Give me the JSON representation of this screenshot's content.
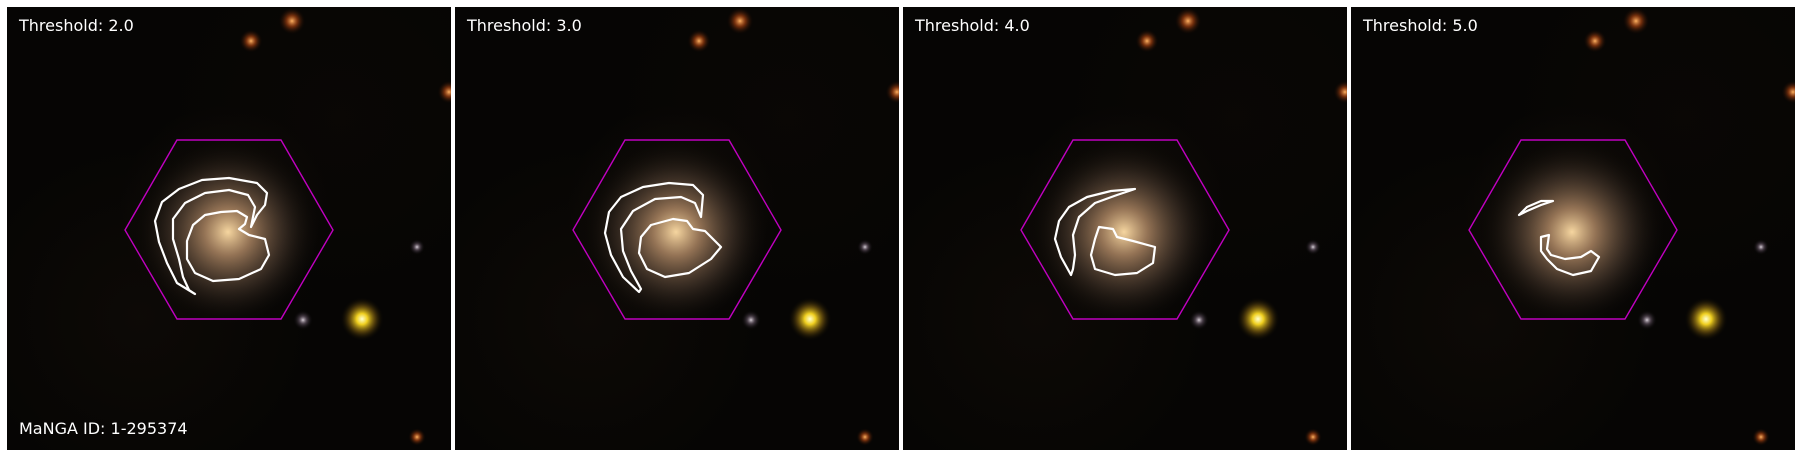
{
  "figure": {
    "manga_id_label": "MaNGA ID: 1-295374",
    "hexagon_color": "#c000c0",
    "contour_color": "#ffffff",
    "panels": [
      {
        "threshold_label": "Threshold: 2.0"
      },
      {
        "threshold_label": "Threshold: 3.0"
      },
      {
        "threshold_label": "Threshold: 4.0"
      },
      {
        "threshold_label": "Threshold: 5.0"
      }
    ]
  }
}
